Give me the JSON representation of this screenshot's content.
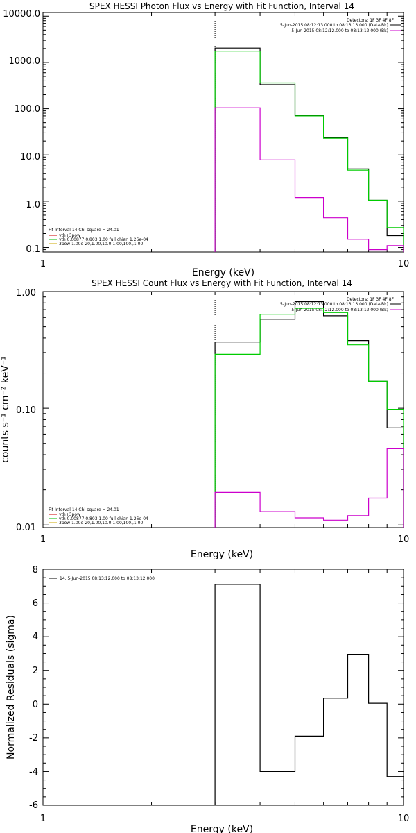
{
  "chart_data": [
    {
      "type": "line",
      "title": "SPEX HESSI Photon Flux vs Energy with Fit Function, Interval 14",
      "xlabel": "Energy (keV)",
      "ylabel": "",
      "xscale": "log",
      "yscale": "log",
      "xlim": [
        1,
        10
      ],
      "ylim": [
        0.08,
        12000
      ],
      "x_ticks": [
        1,
        10
      ],
      "x_tick_labels": [
        "1",
        "10"
      ],
      "y_ticks": [
        0.1,
        1,
        10,
        100,
        1000,
        10000
      ],
      "y_tick_labels": [
        "0.1",
        "1.0",
        "10.0",
        "100.0",
        "1000.0",
        "10000.0"
      ],
      "vline_x": 3,
      "top_legend": [
        {
          "text": "Detectors: 1F 3F 4F 8F",
          "color": ""
        },
        {
          "text": "5-Jun-2015 08:12:13.000 to 08:13:13.000 (Data-Bk)",
          "color": "#000000"
        },
        {
          "text": "5-Jun-2015 08:12:12.000 to 08:13:12.000 (Bk)",
          "color": "#cc00cc"
        }
      ],
      "fit_legend": [
        {
          "text": "Fit Interval 14     Chi-square = 24.01",
          "color": ""
        },
        {
          "text": "vth+3pow",
          "color": "#cc0000"
        },
        {
          "text": "vth 0.00877,0.803,1.00   full chian 1.26e-04",
          "color": "#00bb00"
        },
        {
          "text": "3pow 1.00e-20,1.00,10.0,1.00,100.,1.00",
          "color": "#ccaa00"
        }
      ],
      "series": [
        {
          "color": "#000000",
          "edges": [
            3,
            4,
            5,
            6,
            7,
            8,
            9,
            10
          ],
          "values": [
            2050,
            330,
            72,
            24,
            5.0,
            1.05,
            0.18
          ]
        },
        {
          "color": "#00cc00",
          "edges": [
            3,
            4,
            5,
            6,
            7,
            8,
            9,
            10
          ],
          "values": [
            1750,
            360,
            70,
            23,
            4.7,
            1.05,
            0.27
          ]
        },
        {
          "color": "#cc00cc",
          "edges": [
            3,
            4,
            5,
            6,
            7,
            8,
            9,
            10
          ],
          "values": [
            105,
            7.8,
            1.2,
            0.44,
            0.15,
            0.09,
            0.11
          ]
        }
      ]
    },
    {
      "type": "line",
      "title": "SPEX HESSI Count Flux vs Energy with Fit Function, Interval 14",
      "xlabel": "Energy (keV)",
      "ylabel": "counts s⁻¹ cm⁻² keV⁻¹",
      "xscale": "log",
      "yscale": "log",
      "xlim": [
        1,
        10
      ],
      "ylim": [
        0.0095,
        1.0
      ],
      "x_ticks": [
        1,
        10
      ],
      "x_tick_labels": [
        "1",
        "10"
      ],
      "y_ticks": [
        0.01,
        0.1,
        1.0
      ],
      "y_tick_labels": [
        "0.01",
        "0.10",
        "1.00"
      ],
      "vline_x": 3,
      "top_legend": [
        {
          "text": "Detectors: 1F 3F 4F 8F",
          "color": ""
        },
        {
          "text": "5-Jun-2015 08:12:13.000 to 08:13:13.000 (Data-Bk)",
          "color": "#000000"
        },
        {
          "text": "5-Jun-2015 08:12:12.000 to 08:13:12.000 (Bk)",
          "color": "#cc00cc"
        }
      ],
      "fit_legend": [
        {
          "text": "Fit Interval 14     Chi-square = 24.01",
          "color": ""
        },
        {
          "text": "vth+3pow",
          "color": "#cc0000"
        },
        {
          "text": "vth 0.00877,0.803,1.00   full chian 1.26e-04",
          "color": "#00bb00"
        },
        {
          "text": "3pow 1.00e-20,1.00,10.0,1.00,100.,1.00",
          "color": "#ccaa00"
        }
      ],
      "series": [
        {
          "color": "#000000",
          "edges": [
            3,
            4,
            5,
            6,
            7,
            8,
            9,
            10
          ],
          "values": [
            0.37,
            0.58,
            0.82,
            0.62,
            0.38,
            0.17,
            0.068
          ]
        },
        {
          "color": "#00cc00",
          "edges": [
            3,
            4,
            5,
            6,
            7,
            8,
            9,
            10
          ],
          "values": [
            0.29,
            0.64,
            0.72,
            0.66,
            0.35,
            0.17,
            0.098
          ]
        },
        {
          "color": "#cc00cc",
          "edges": [
            3,
            4,
            5,
            6,
            7,
            8,
            9,
            10
          ],
          "values": [
            0.019,
            0.013,
            0.0115,
            0.011,
            0.012,
            0.017,
            0.045
          ]
        }
      ]
    },
    {
      "type": "line",
      "title": "",
      "xlabel": "Energy (keV)",
      "ylabel": "Normalized Residuals (sigma)",
      "xscale": "log",
      "yscale": "linear",
      "xlim": [
        1,
        10
      ],
      "ylim": [
        -6,
        8
      ],
      "x_ticks": [
        1,
        10
      ],
      "x_tick_labels": [
        "1",
        "10"
      ],
      "y_ticks": [
        -6,
        -4,
        -2,
        0,
        2,
        4,
        6,
        8
      ],
      "y_tick_labels": [
        "-6",
        "-4",
        "-2",
        "0",
        "2",
        "4",
        "6",
        "8"
      ],
      "top_legend": [],
      "fit_legend": [
        {
          "text": "14.  5-Jun-2015 08:13:12.000 to 08:13:12.000",
          "color": "#000000"
        }
      ],
      "series": [
        {
          "color": "#000000",
          "edges": [
            3,
            4,
            5,
            6,
            7,
            8,
            9,
            10
          ],
          "values": [
            7.1,
            -4.0,
            -1.9,
            0.35,
            2.95,
            0.05,
            -4.3
          ]
        }
      ]
    }
  ]
}
